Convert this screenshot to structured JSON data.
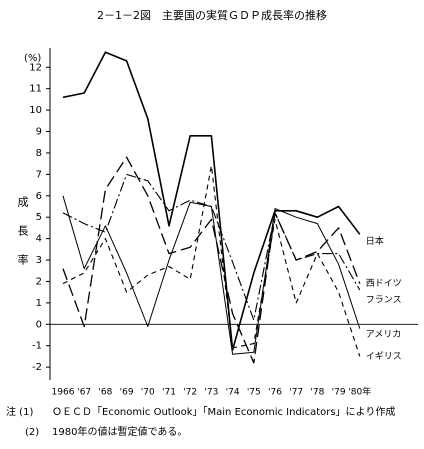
{
  "chart_data": {
    "type": "line",
    "title": "2－1－2図　主要国の実質ＧＤＰ成長率の推移",
    "y_unit": "(%)",
    "y_label": "成長率",
    "categories": [
      "1966",
      "'67",
      "'68",
      "'69",
      "'70",
      "'71",
      "'72",
      "'73",
      "'74",
      "'75",
      "'76",
      "'77",
      "'78",
      "'79",
      "'80年"
    ],
    "series": [
      {
        "name": "日本",
        "color": "#000",
        "dash": "none",
        "width": 1.6,
        "values": [
          10.6,
          10.8,
          12.7,
          12.3,
          9.6,
          4.6,
          8.8,
          8.8,
          -1.2,
          2.4,
          5.3,
          5.3,
          5.0,
          5.5,
          4.2
        ]
      },
      {
        "name": "西ドイツ",
        "color": "#000",
        "dash": "12,5",
        "width": 1.3,
        "values": [
          2.6,
          -0.1,
          6.3,
          7.8,
          6.0,
          3.3,
          3.6,
          4.9,
          0.5,
          -1.8,
          5.2,
          3.0,
          3.4,
          4.5,
          1.9
        ]
      },
      {
        "name": "フランス",
        "color": "#000",
        "dash": "10,3,2,3",
        "width": 1.1,
        "values": [
          5.2,
          4.7,
          4.3,
          7.0,
          6.7,
          5.3,
          5.8,
          5.5,
          2.9,
          0.2,
          5.2,
          3.0,
          3.3,
          3.3,
          1.6
        ]
      },
      {
        "name": "アメリカ",
        "color": "#000",
        "dash": "none",
        "width": 1.0,
        "values": [
          6.0,
          2.6,
          4.6,
          2.4,
          -0.1,
          3.0,
          5.7,
          5.5,
          -1.4,
          -1.3,
          5.4,
          5.0,
          4.7,
          2.8,
          -0.2
        ]
      },
      {
        "name": "イギリス",
        "color": "#000",
        "dash": "5,4",
        "width": 1.1,
        "values": [
          1.9,
          2.4,
          4.0,
          1.5,
          2.3,
          2.7,
          2.1,
          7.4,
          -1.1,
          -0.9,
          4.9,
          1.0,
          3.3,
          1.5,
          -1.5
        ]
      }
    ],
    "ylim": [
      -2.6,
      12.9
    ],
    "yticks": [
      -2,
      -1,
      0,
      1,
      2,
      3,
      4,
      5,
      6,
      7,
      8,
      9,
      10,
      11,
      12
    ],
    "notes": [
      {
        "marker": "注 (1)",
        "text": "ＯＥＣＤ「Economic Outlook」「Main Economic Indicators」により作成"
      },
      {
        "marker": "(2)",
        "text": "1980年の値は暫定値である。"
      }
    ]
  }
}
